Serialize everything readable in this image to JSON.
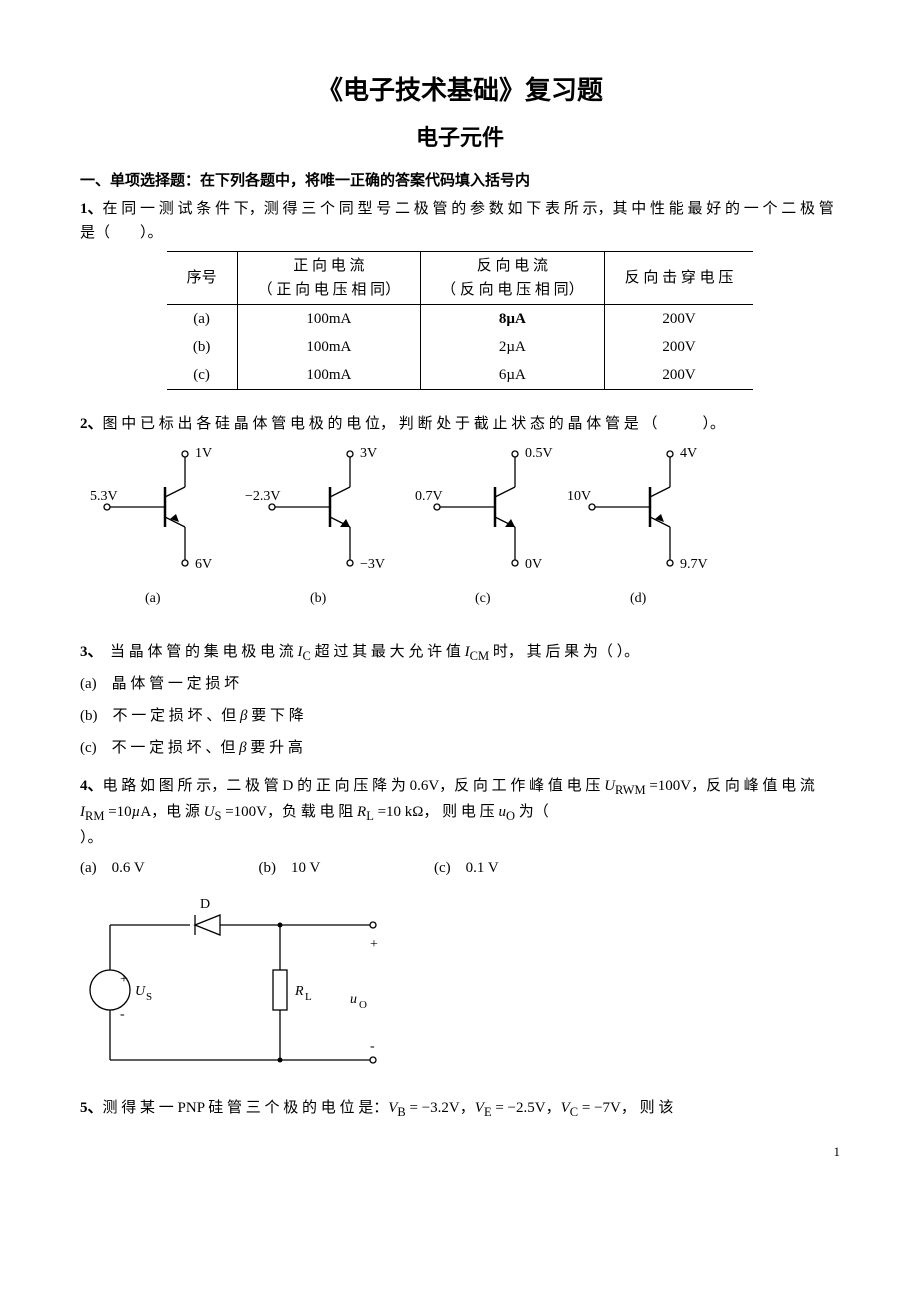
{
  "title_main": "《电子技术基础》复习题",
  "title_sub": "电子元件",
  "section1_head": "一、单项选择题：在下列各题中，将唯一正确的答案代码填入括号内",
  "q1": {
    "num": "1、",
    "text": "在 同 一 测 试 条 件 下，测 得 三 个 同 型 号 二 极 管 的 参 数 如 下 表 所 示，其 中 性 能 最 好 的 一 个 二 极 管 是（　　）。",
    "table": {
      "headers": [
        "序号",
        "正 向 电 流\n（ 正 向 电 压 相 同）",
        "反 向 电 流\n（ 反 向 电 压 相 同）",
        "反 向 击 穿 电 压"
      ],
      "rows": [
        [
          "(a)",
          "100mA",
          "8µA",
          "200V"
        ],
        [
          "(b)",
          "100mA",
          "2µA",
          "200V"
        ],
        [
          "(c)",
          "100mA",
          "6µA",
          "200V"
        ]
      ]
    }
  },
  "q2": {
    "num": "2、",
    "text": "图 中 已 标 出 各 硅 晶 体 管 电 极 的 电 位， 判 断 处 于 截 止 状 态 的 晶 体 管 是 （　　　）。",
    "diagrams": [
      {
        "label": "(a)",
        "collector": "1V",
        "base": "5.3V",
        "emitter": "6V",
        "type": "pnp"
      },
      {
        "label": "(b)",
        "collector": "3V",
        "base": "−2.3V",
        "emitter": "−3V",
        "type": "npn"
      },
      {
        "label": "(c)",
        "collector": "0.5V",
        "base": "0.7V",
        "emitter": "0V",
        "type": "npn"
      },
      {
        "label": "(d)",
        "collector": "4V",
        "base": "10V",
        "emitter": "9.7V",
        "type": "pnp"
      }
    ]
  },
  "q3": {
    "num": "3、",
    "text": "　当 晶 体 管 的 集 电 极 电 流 I_C 超 过 其 最 大 允 许 值 I_CM  时， 其 后 果 为（  ）。",
    "opts": {
      "a": "(a)　晶 体 管 一 定 损 坏",
      "b": "(b)　不 一 定 损 坏 、但 β 要 下 降",
      "c": "(c)　不 一 定 损 坏 、但 β 要 升 高"
    }
  },
  "q4": {
    "num": "4、",
    "text": "电 路 如 图 所 示，二 极 管 D 的 正 向 压 降 为 0.6V，反 向 工 作 峰 值 电 压 U_RWM =100V，反 向 峰 值 电 流 I_RM =10µA，电 源 U_S =100V，负 载 电 阻 R_L =10 kΩ， 则 电 压 u_O 为（  ）。",
    "opts": {
      "a": "(a)　0.6 V",
      "b": "(b)　10 V",
      "c": "(c)　0.1 V"
    },
    "circuit_labels": {
      "D": "D",
      "US": "U_S",
      "RL": "R_L",
      "uo": "u_O",
      "plus": "+",
      "minus": "-"
    }
  },
  "q5": {
    "num": "5、",
    "text": "测 得 某 一 PNP 硅 管 三 个 极 的 电 位 是：V_B = −3.2V，V_E = −2.5V，V_C = −7V， 则 该"
  },
  "page_number": "1",
  "style": {
    "body_font_size": 15,
    "title_font_size": 26,
    "subtitle_font_size": 22,
    "svg_text_size": 14,
    "page_bg": "#ffffff",
    "text_color": "#000000",
    "line_color": "#000000",
    "line_width": 1.3
  }
}
